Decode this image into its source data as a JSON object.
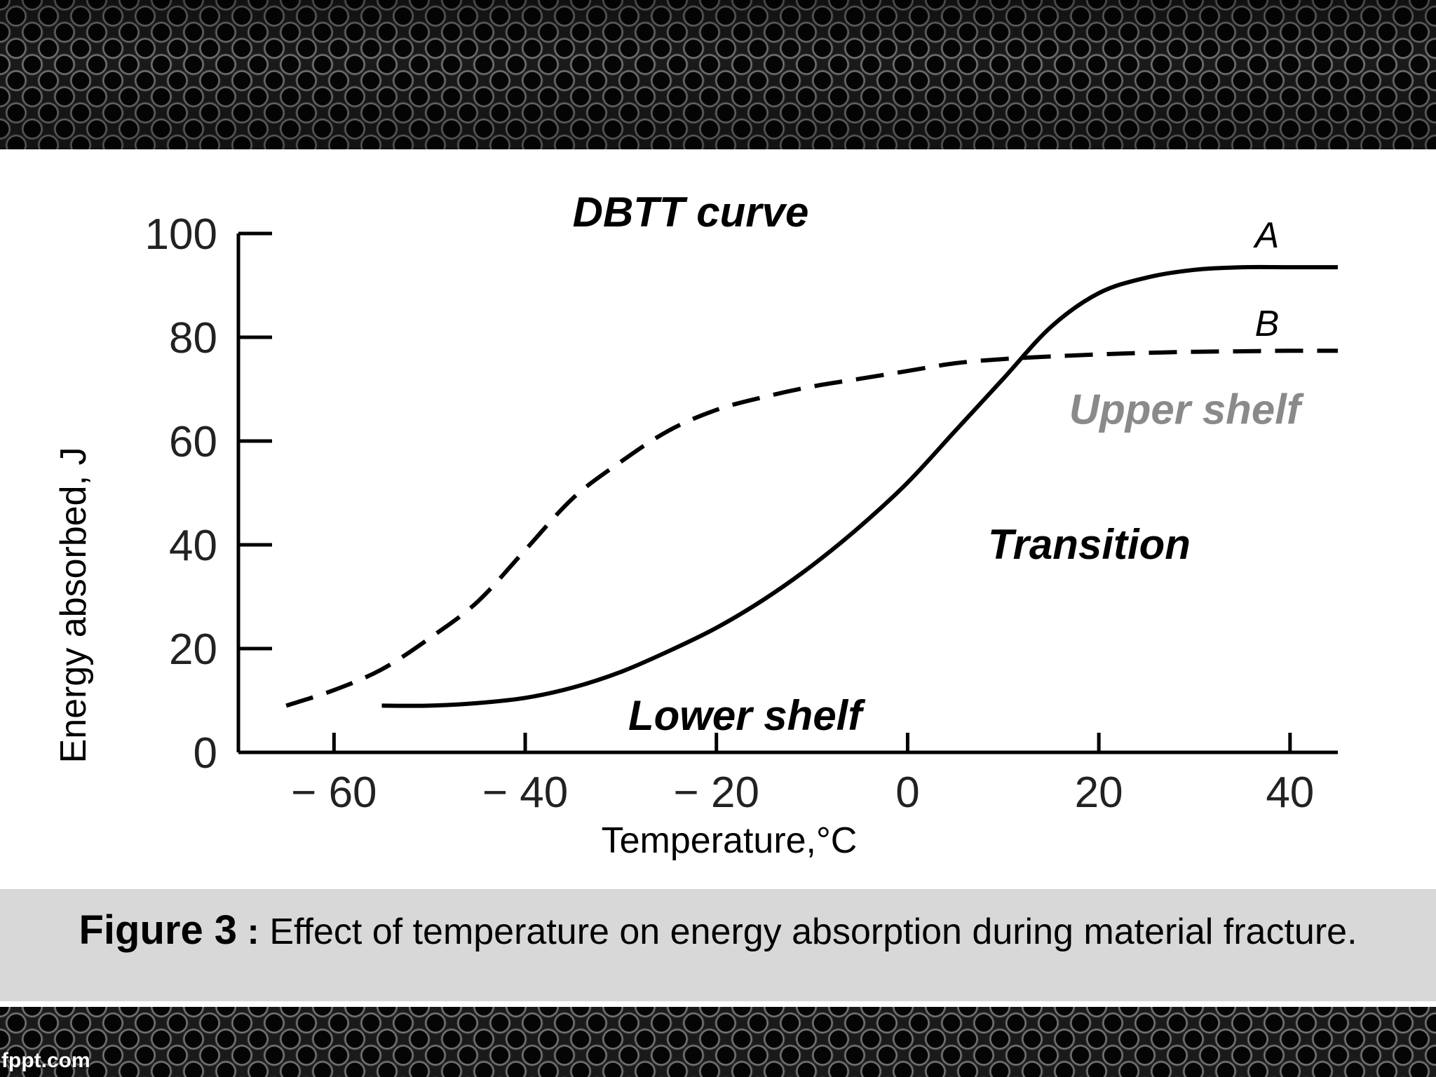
{
  "branding": {
    "site_logo": "fppt.com"
  },
  "caption": {
    "figure_number": "Figure 3",
    "separator": ":",
    "text": "Effect of temperature on energy absorption during material fracture."
  },
  "chart_data": {
    "type": "line",
    "title": "DBTT curve",
    "xlabel": "Temperature,°C",
    "ylabel": "Energy absorbed, J",
    "xlim": [
      -70,
      45
    ],
    "ylim": [
      0,
      100
    ],
    "x_ticks": [
      -60,
      -40,
      -20,
      0,
      20,
      40
    ],
    "x_tick_labels": [
      "− 60",
      "− 40",
      "− 20",
      "0",
      "20",
      "40"
    ],
    "y_ticks": [
      0,
      20,
      40,
      60,
      80,
      100
    ],
    "y_tick_labels": [
      "0",
      "20",
      "40",
      "60",
      "80",
      "100"
    ],
    "grid": false,
    "series": [
      {
        "name": "A",
        "style": "solid",
        "x": [
          -55,
          -50,
          -45,
          -40,
          -35,
          -30,
          -25,
          -20,
          -15,
          -10,
          -5,
          0,
          5,
          10,
          15,
          20,
          25,
          30,
          35,
          40,
          45
        ],
        "y": [
          9,
          9,
          9.5,
          10.5,
          12.5,
          15.5,
          19.5,
          24,
          29.5,
          36,
          43.5,
          52,
          62,
          72,
          82,
          88.5,
          91.5,
          93,
          93.5,
          93.5,
          93.5
        ]
      },
      {
        "name": "B",
        "style": "dashed",
        "x": [
          -65,
          -60,
          -55,
          -50,
          -45,
          -40,
          -35,
          -30,
          -25,
          -20,
          -15,
          -10,
          -5,
          0,
          5,
          10,
          15,
          20,
          25,
          30,
          35,
          40,
          45
        ],
        "y": [
          9,
          12,
          16,
          22,
          29,
          39,
          49,
          56,
          62,
          66,
          68.5,
          70.5,
          72,
          73.5,
          75,
          75.8,
          76.3,
          76.7,
          77,
          77.2,
          77.3,
          77.4,
          77.4
        ]
      }
    ],
    "annotations": [
      {
        "text": "Upper shelf",
        "x": 29,
        "y": 66,
        "color": "#8a8a8a"
      },
      {
        "text": "Transition",
        "x": 19,
        "y": 40,
        "color": "#000000"
      },
      {
        "text": "Lower shelf",
        "x": -17,
        "y": 7,
        "color": "#000000"
      }
    ]
  }
}
